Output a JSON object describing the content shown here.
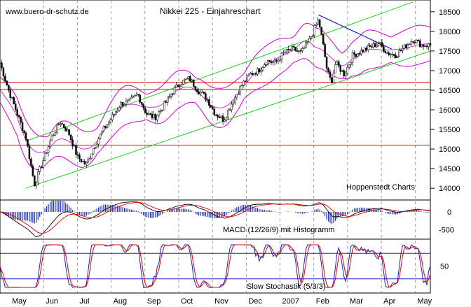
{
  "url_text": "www.buero-dr-schutz.de",
  "credit": "Hoppenstedt Charts",
  "chart_data": [
    {
      "type": "candlestick",
      "title": "Nikkei 225 - Einjahreschart",
      "y_range": [
        13700,
        18800
      ],
      "y_ticks": [
        14000,
        14500,
        15000,
        15500,
        16000,
        16500,
        17000,
        17500,
        18000,
        18500
      ],
      "x_months": [
        "May",
        "Jun",
        "Jul",
        "Aug",
        "Sep",
        "Oct",
        "Nov",
        "Dec",
        "2007",
        "Feb",
        "Mar",
        "Apr",
        "May"
      ],
      "grid": "dashed vertical month separators",
      "horizontal_levels": [
        15100,
        16520,
        16700
      ],
      "trend_channel_green": {
        "lower": {
          "start": {
            "x": 0.06,
            "y": 14000
          },
          "end": {
            "x": 1.0,
            "y": 17500
          }
        },
        "upper": {
          "start": {
            "x": 0.06,
            "y": 15200
          },
          "end": {
            "x": 0.96,
            "y": 18750
          }
        }
      },
      "trend_line_blue": {
        "start": {
          "x": 0.74,
          "y": 18420
        },
        "end": {
          "x": 0.91,
          "y": 17550
        }
      },
      "close_keypoints": [
        {
          "x": 0.0,
          "y": 17200
        },
        {
          "x": 0.02,
          "y": 16500
        },
        {
          "x": 0.04,
          "y": 15900
        },
        {
          "x": 0.06,
          "y": 15300
        },
        {
          "x": 0.08,
          "y": 14100
        },
        {
          "x": 0.1,
          "y": 14700
        },
        {
          "x": 0.12,
          "y": 15300
        },
        {
          "x": 0.14,
          "y": 15700
        },
        {
          "x": 0.16,
          "y": 15400
        },
        {
          "x": 0.18,
          "y": 14800
        },
        {
          "x": 0.2,
          "y": 14600
        },
        {
          "x": 0.22,
          "y": 15100
        },
        {
          "x": 0.24,
          "y": 15500
        },
        {
          "x": 0.26,
          "y": 15800
        },
        {
          "x": 0.28,
          "y": 16150
        },
        {
          "x": 0.3,
          "y": 16200
        },
        {
          "x": 0.32,
          "y": 16400
        },
        {
          "x": 0.34,
          "y": 15900
        },
        {
          "x": 0.36,
          "y": 15800
        },
        {
          "x": 0.38,
          "y": 16100
        },
        {
          "x": 0.4,
          "y": 16450
        },
        {
          "x": 0.42,
          "y": 16700
        },
        {
          "x": 0.44,
          "y": 16800
        },
        {
          "x": 0.46,
          "y": 16500
        },
        {
          "x": 0.48,
          "y": 16300
        },
        {
          "x": 0.5,
          "y": 15900
        },
        {
          "x": 0.52,
          "y": 15750
        },
        {
          "x": 0.54,
          "y": 16200
        },
        {
          "x": 0.56,
          "y": 16600
        },
        {
          "x": 0.58,
          "y": 16900
        },
        {
          "x": 0.6,
          "y": 17000
        },
        {
          "x": 0.62,
          "y": 17250
        },
        {
          "x": 0.64,
          "y": 17200
        },
        {
          "x": 0.66,
          "y": 17450
        },
        {
          "x": 0.68,
          "y": 17550
        },
        {
          "x": 0.7,
          "y": 17450
        },
        {
          "x": 0.72,
          "y": 17800
        },
        {
          "x": 0.74,
          "y": 18300
        },
        {
          "x": 0.75,
          "y": 17700
        },
        {
          "x": 0.76,
          "y": 17000
        },
        {
          "x": 0.77,
          "y": 16700
        },
        {
          "x": 0.78,
          "y": 17200
        },
        {
          "x": 0.8,
          "y": 16900
        },
        {
          "x": 0.82,
          "y": 17400
        },
        {
          "x": 0.84,
          "y": 17500
        },
        {
          "x": 0.86,
          "y": 17600
        },
        {
          "x": 0.88,
          "y": 17700
        },
        {
          "x": 0.9,
          "y": 17450
        },
        {
          "x": 0.92,
          "y": 17400
        },
        {
          "x": 0.94,
          "y": 17600
        },
        {
          "x": 0.96,
          "y": 17800
        },
        {
          "x": 0.98,
          "y": 17650
        }
      ],
      "overlays": [
        "magenta envelope bands",
        "red moving average lines"
      ]
    },
    {
      "type": "macd",
      "label": "MACD (12/26/9) mit Histogramm",
      "y_ticks": [
        0,
        -500
      ],
      "series": [
        "MACD line (black)",
        "Signal line (red)",
        "Histogram (blue)"
      ]
    },
    {
      "type": "stochastic",
      "label": "Slow Stochastik (5/3/3)",
      "y_ticks": [
        50
      ],
      "levels": [
        80,
        20
      ],
      "series": [
        "%K (blue)",
        "%D (red)"
      ]
    }
  ]
}
